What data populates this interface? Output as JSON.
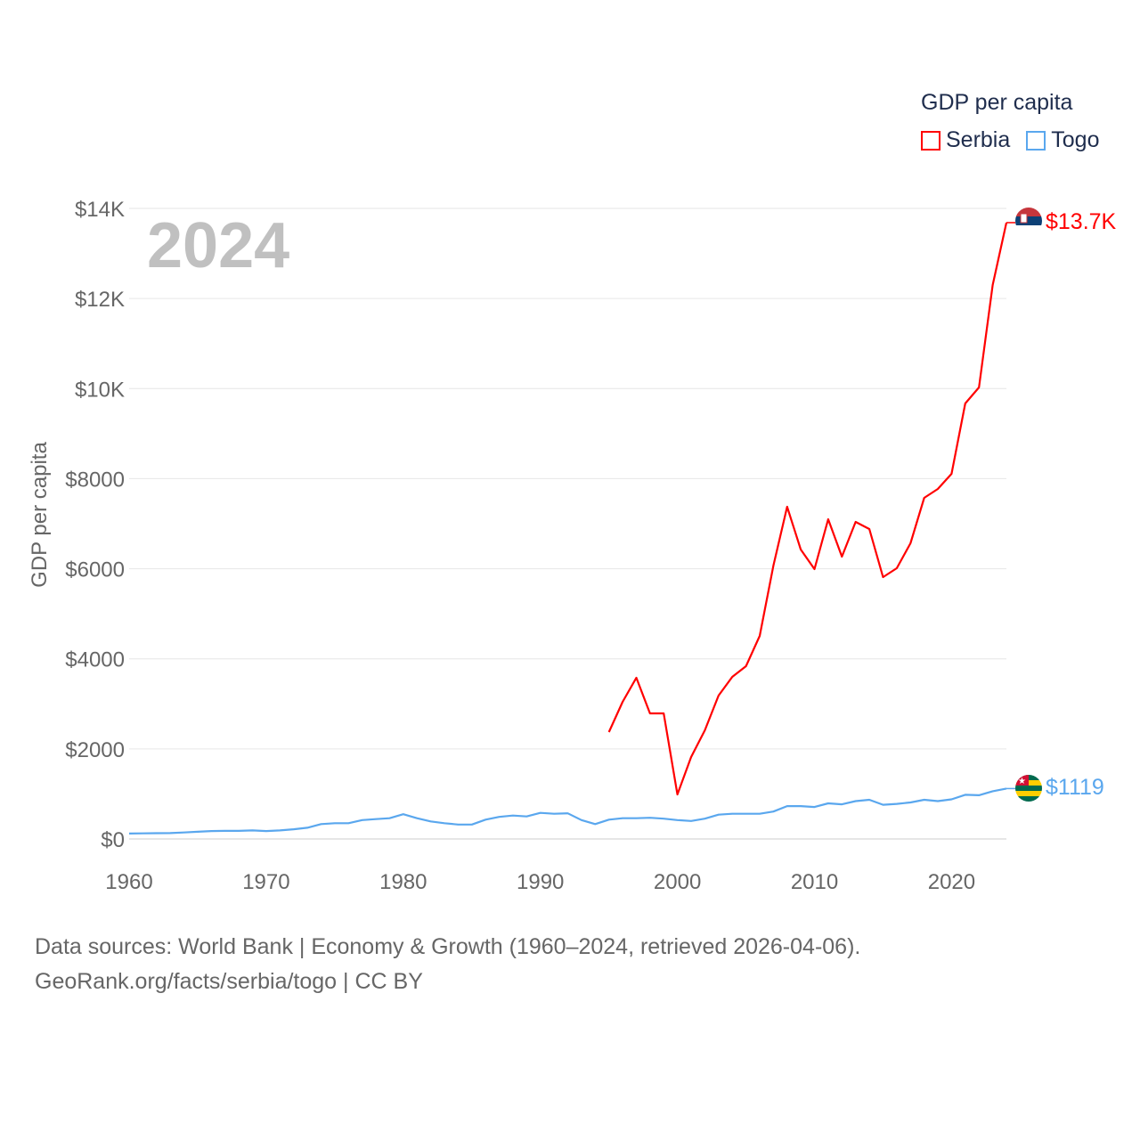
{
  "legend": {
    "title": "GDP per capita",
    "items": [
      {
        "label": "Serbia",
        "color": "#ff0000"
      },
      {
        "label": "Togo",
        "color": "#5aa7ee"
      }
    ]
  },
  "footer": {
    "line1": "Data sources: World Bank | Economy & Growth (1960–2024, retrieved 2026-04-06).",
    "line2": "GeoRank.org/facts/serbia/togo | CC BY"
  },
  "chart_data": {
    "type": "line",
    "title": "GDP per capita",
    "year_label": "2024",
    "xlabel": "",
    "ylabel": "GDP per capita",
    "xlim": [
      1960,
      2024
    ],
    "ylim": [
      0,
      14000
    ],
    "x_ticks": [
      "1960",
      "1970",
      "1980",
      "1990",
      "2000",
      "2010",
      "2020"
    ],
    "y_ticks": [
      {
        "value": 0,
        "label": "$0"
      },
      {
        "value": 2000,
        "label": "$2000"
      },
      {
        "value": 4000,
        "label": "$4000"
      },
      {
        "value": 6000,
        "label": "$6000"
      },
      {
        "value": 8000,
        "label": "$8000"
      },
      {
        "value": 10000,
        "label": "$10K"
      },
      {
        "value": 12000,
        "label": "$12K"
      },
      {
        "value": 14000,
        "label": "$14K"
      }
    ],
    "grid": true,
    "legend_position": "top-right",
    "series": [
      {
        "name": "Serbia",
        "color": "#ff0000",
        "end_label": "$13.7K",
        "start_year": 1995,
        "values": [
          2373,
          3045,
          3579,
          2788,
          2788,
          989,
          1819,
          2412,
          3184,
          3599,
          3836,
          4509,
          6071,
          7376,
          6427,
          5992,
          7099,
          6269,
          7040,
          6882,
          5814,
          6012,
          6565,
          7574,
          7771,
          8108,
          9670,
          10026,
          12300,
          13684
        ]
      },
      {
        "name": "Togo",
        "color": "#5aa7ee",
        "end_label": "$1119",
        "start_year": 1960,
        "values": [
          120,
          125,
          128,
          130,
          145,
          160,
          175,
          180,
          180,
          190,
          175,
          190,
          215,
          250,
          330,
          350,
          350,
          420,
          440,
          460,
          550,
          460,
          390,
          350,
          320,
          320,
          430,
          490,
          520,
          500,
          580,
          560,
          570,
          420,
          330,
          430,
          460,
          460,
          470,
          450,
          420,
          400,
          450,
          540,
          560,
          560,
          560,
          610,
          730,
          730,
          710,
          790,
          770,
          840,
          870,
          760,
          780,
          810,
          870,
          840,
          880,
          980,
          970,
          1060,
          1119
        ]
      }
    ]
  }
}
